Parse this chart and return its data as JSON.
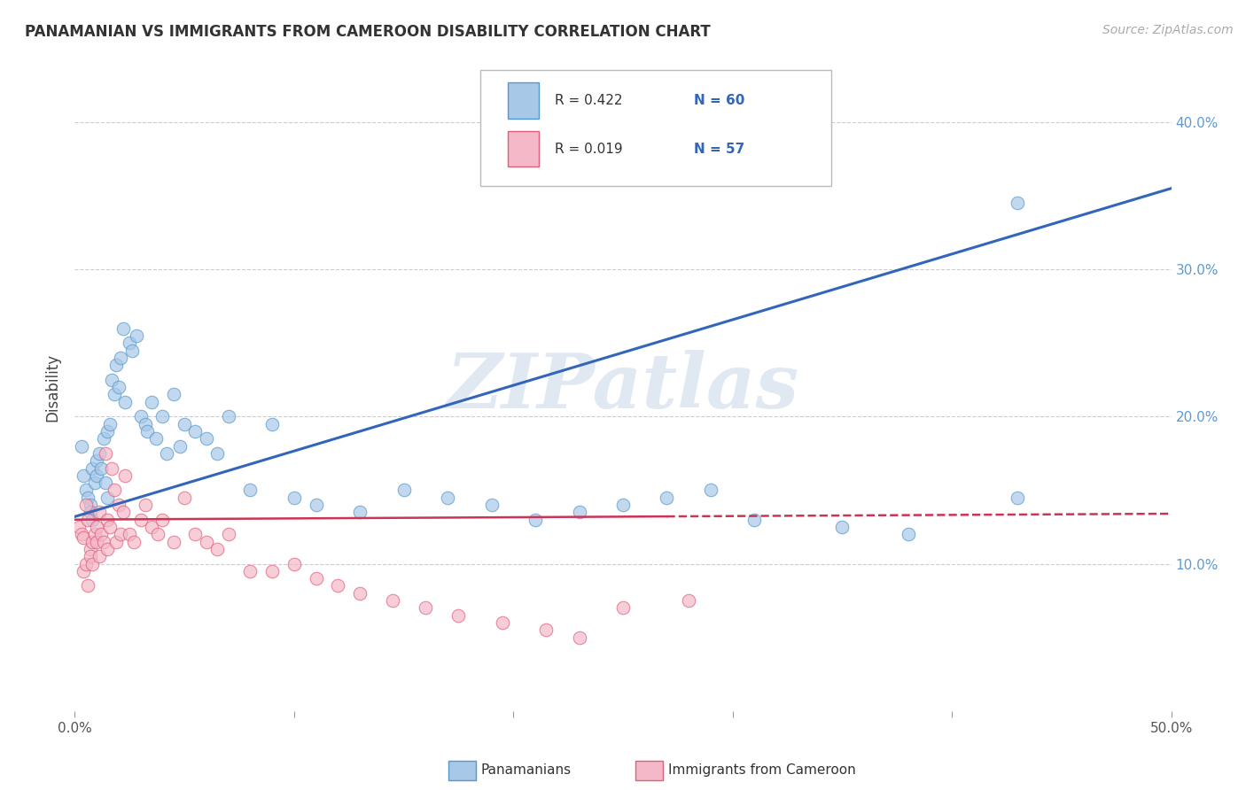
{
  "title": "PANAMANIAN VS IMMIGRANTS FROM CAMEROON DISABILITY CORRELATION CHART",
  "source": "Source: ZipAtlas.com",
  "ylabel": "Disability",
  "xlim": [
    0.0,
    0.5
  ],
  "ylim": [
    0.0,
    0.44
  ],
  "xtick_vals": [
    0.0,
    0.1,
    0.2,
    0.3,
    0.4,
    0.5
  ],
  "xtick_labels": [
    "0.0%",
    "",
    "",
    "",
    "",
    "50.0%"
  ],
  "ytick_vals": [
    0.1,
    0.2,
    0.3,
    0.4
  ],
  "ytick_labels": [
    "10.0%",
    "20.0%",
    "30.0%",
    "40.0%"
  ],
  "legend_r1": "R = 0.422",
  "legend_n1": "N = 60",
  "legend_r2": "R = 0.019",
  "legend_n2": "N = 57",
  "blue_fill": "#a8c8e8",
  "blue_edge": "#5599cc",
  "pink_fill": "#f4b8c8",
  "pink_edge": "#e0607a",
  "line_blue": "#3366bb",
  "line_pink": "#cc3355",
  "watermark_text": "ZIPatlas",
  "watermark_color": "#c8d8e8",
  "blue_line_x0": 0.0,
  "blue_line_y0": 0.132,
  "blue_line_x1": 0.5,
  "blue_line_y1": 0.355,
  "pink_line_x0": 0.0,
  "pink_line_y0": 0.13,
  "pink_line_x1": 0.5,
  "pink_line_y1": 0.134,
  "blue_x": [
    0.003,
    0.004,
    0.005,
    0.006,
    0.007,
    0.007,
    0.008,
    0.008,
    0.009,
    0.01,
    0.01,
    0.011,
    0.012,
    0.013,
    0.014,
    0.015,
    0.015,
    0.016,
    0.017,
    0.018,
    0.019,
    0.02,
    0.021,
    0.022,
    0.023,
    0.025,
    0.026,
    0.028,
    0.03,
    0.032,
    0.033,
    0.035,
    0.037,
    0.04,
    0.042,
    0.045,
    0.048,
    0.05,
    0.055,
    0.06,
    0.065,
    0.07,
    0.08,
    0.09,
    0.1,
    0.11,
    0.13,
    0.15,
    0.17,
    0.19,
    0.21,
    0.23,
    0.25,
    0.27,
    0.29,
    0.31,
    0.35,
    0.38,
    0.43,
    0.43
  ],
  "blue_y": [
    0.18,
    0.16,
    0.15,
    0.145,
    0.14,
    0.135,
    0.165,
    0.13,
    0.155,
    0.17,
    0.16,
    0.175,
    0.165,
    0.185,
    0.155,
    0.19,
    0.145,
    0.195,
    0.225,
    0.215,
    0.235,
    0.22,
    0.24,
    0.26,
    0.21,
    0.25,
    0.245,
    0.255,
    0.2,
    0.195,
    0.19,
    0.21,
    0.185,
    0.2,
    0.175,
    0.215,
    0.18,
    0.195,
    0.19,
    0.185,
    0.175,
    0.2,
    0.15,
    0.195,
    0.145,
    0.14,
    0.135,
    0.15,
    0.145,
    0.14,
    0.13,
    0.135,
    0.14,
    0.145,
    0.15,
    0.13,
    0.125,
    0.12,
    0.345,
    0.145
  ],
  "pink_x": [
    0.002,
    0.003,
    0.004,
    0.004,
    0.005,
    0.005,
    0.006,
    0.006,
    0.007,
    0.007,
    0.008,
    0.008,
    0.009,
    0.01,
    0.01,
    0.011,
    0.011,
    0.012,
    0.013,
    0.014,
    0.015,
    0.015,
    0.016,
    0.017,
    0.018,
    0.019,
    0.02,
    0.021,
    0.022,
    0.023,
    0.025,
    0.027,
    0.03,
    0.032,
    0.035,
    0.038,
    0.04,
    0.045,
    0.05,
    0.055,
    0.06,
    0.065,
    0.07,
    0.08,
    0.09,
    0.1,
    0.11,
    0.12,
    0.13,
    0.145,
    0.16,
    0.175,
    0.195,
    0.215,
    0.23,
    0.25,
    0.28
  ],
  "pink_y": [
    0.125,
    0.12,
    0.118,
    0.095,
    0.14,
    0.1,
    0.13,
    0.085,
    0.11,
    0.105,
    0.115,
    0.1,
    0.12,
    0.125,
    0.115,
    0.135,
    0.105,
    0.12,
    0.115,
    0.175,
    0.13,
    0.11,
    0.125,
    0.165,
    0.15,
    0.115,
    0.14,
    0.12,
    0.135,
    0.16,
    0.12,
    0.115,
    0.13,
    0.14,
    0.125,
    0.12,
    0.13,
    0.115,
    0.145,
    0.12,
    0.115,
    0.11,
    0.12,
    0.095,
    0.095,
    0.1,
    0.09,
    0.085,
    0.08,
    0.075,
    0.07,
    0.065,
    0.06,
    0.055,
    0.05,
    0.07,
    0.075
  ]
}
